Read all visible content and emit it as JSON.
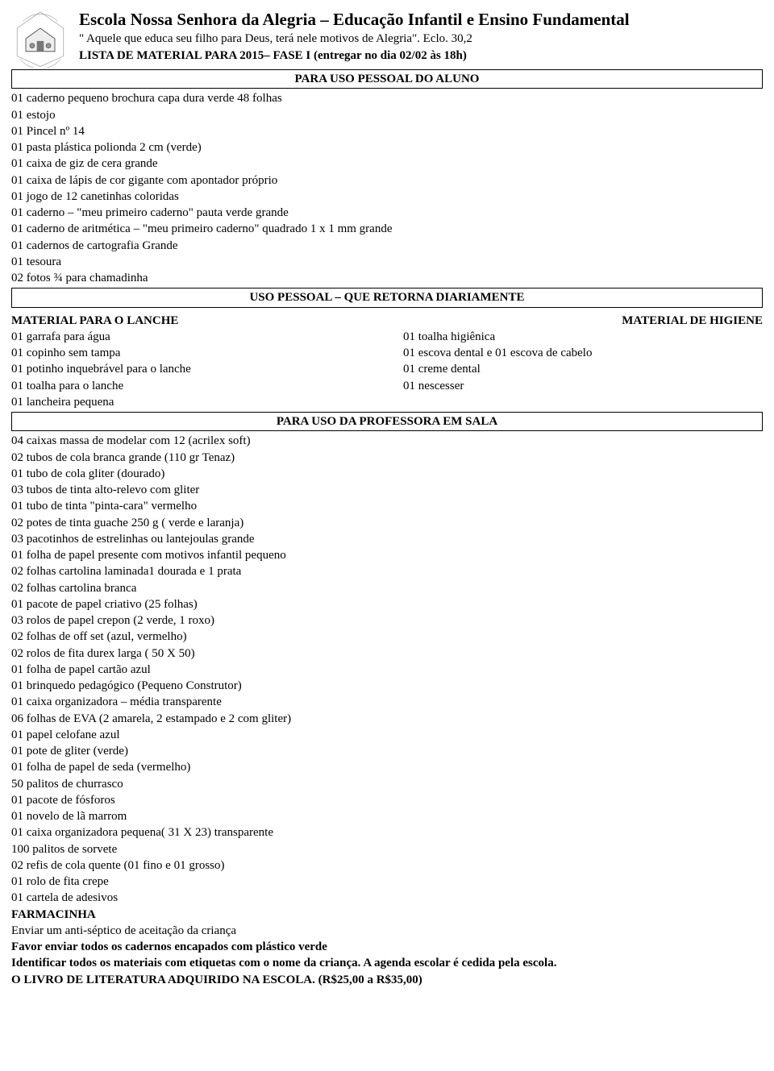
{
  "header": {
    "school_name": "Escola Nossa Senhora da Alegria – Educação Infantil e Ensino Fundamental",
    "motto": "\" Aquele que  educa seu filho para Deus, terá nele motivos de Alegria\". Eclo. 30,2",
    "list_title": "LISTA DE MATERIAL PARA 2015– FASE I (entregar no dia 02/02 às 18h)"
  },
  "sections": {
    "pessoal_aluno": "PARA USO PESSOAL DO ALUNO",
    "retorna_diaria": "USO PESSOAL – QUE RETORNA DIARIAMENTE",
    "professora_sala": "PARA USO DA PROFESSORA EM SALA"
  },
  "pessoal_items": [
    "01 caderno pequeno brochura capa dura verde 48 folhas",
    "01 estojo",
    "01 Pincel nº 14",
    "01 pasta plástica polionda 2 cm (verde)",
    "01 caixa de giz de cera grande",
    "01 caixa de lápis de cor gigante com apontador próprio",
    "01 jogo de 12 canetinhas coloridas",
    "01 caderno – \"meu primeiro caderno\"  pauta verde grande",
    "01 caderno de aritmética – \"meu primeiro caderno\" quadrado 1 x 1 mm grande",
    "01 cadernos de cartografia Grande",
    "01 tesoura",
    "02 fotos ¾ para chamadinha"
  ],
  "lanche": {
    "title": "MATERIAL PARA O LANCHE",
    "items": [
      "01 garrafa para água",
      "01 copinho sem tampa",
      "01 potinho inquebrável para o lanche",
      "01 toalha para o lanche",
      "01 lancheira pequena"
    ]
  },
  "higiene": {
    "title": "MATERIAL DE HIGIENE",
    "items": [
      "01 toalha higiênica",
      "01 escova dental e 01 escova de cabelo",
      "01 creme dental",
      "01 nescesser"
    ]
  },
  "professora_items": [
    "04 caixas massa de modelar com 12 (acrilex soft)",
    "02 tubos de cola branca grande (110 gr Tenaz)",
    "01 tubo de cola gliter (dourado)",
    "03 tubos de tinta alto-relevo com gliter",
    "01 tubo de tinta \"pinta-cara\" vermelho",
    "02 potes de tinta guache 250 g ( verde e laranja)",
    "03 pacotinhos de estrelinhas ou lantejoulas grande",
    "01 folha de papel presente com motivos infantil pequeno",
    "02 folhas cartolina laminada1 dourada e 1 prata",
    "02 folhas cartolina branca",
    "01 pacote de papel criativo (25 folhas)",
    "03 rolos de papel crepon (2 verde, 1 roxo)",
    "02 folhas de off set (azul, vermelho)",
    "02 rolos de fita durex larga ( 50 X 50)",
    "01 folha de papel cartão azul",
    "01 brinquedo pedagógico (Pequeno Construtor)",
    "01 caixa organizadora – média transparente",
    "06 folhas de EVA (2 amarela, 2 estampado e  2 com gliter)",
    "01 papel celofane azul",
    "01 pote de gliter (verde)",
    "01 folha de papel de seda (vermelho)",
    "50 palitos de churrasco",
    "01 pacote de fósforos",
    "01 novelo de lã marrom",
    "01 caixa organizadora pequena( 31 X 23) transparente",
    "100 palitos de sorvete",
    "02 refis de cola quente (01 fino e 01 grosso)",
    "01 rolo de fita crepe",
    "01 cartela de adesivos"
  ],
  "footer": {
    "farmacinha_title": "FARMACINHA",
    "farmacinha_line": "Enviar um anti-séptico de aceitação da criança",
    "encapados": "Favor enviar todos os cadernos encapados com plástico verde",
    "identificar": "Identificar todos os materiais com etiquetas com o nome da criança. A agenda escolar é cedida pela escola.",
    "livro": "O LIVRO DE LITERATURA ADQUIRIDO NA ESCOLA.  (R$25,00 a R$35,00)"
  },
  "style": {
    "background_color": "#ffffff",
    "text_color": "#000000",
    "border_color": "#000000",
    "font_family": "Times New Roman",
    "base_fontsize": 15,
    "title_fontsize": 21
  }
}
